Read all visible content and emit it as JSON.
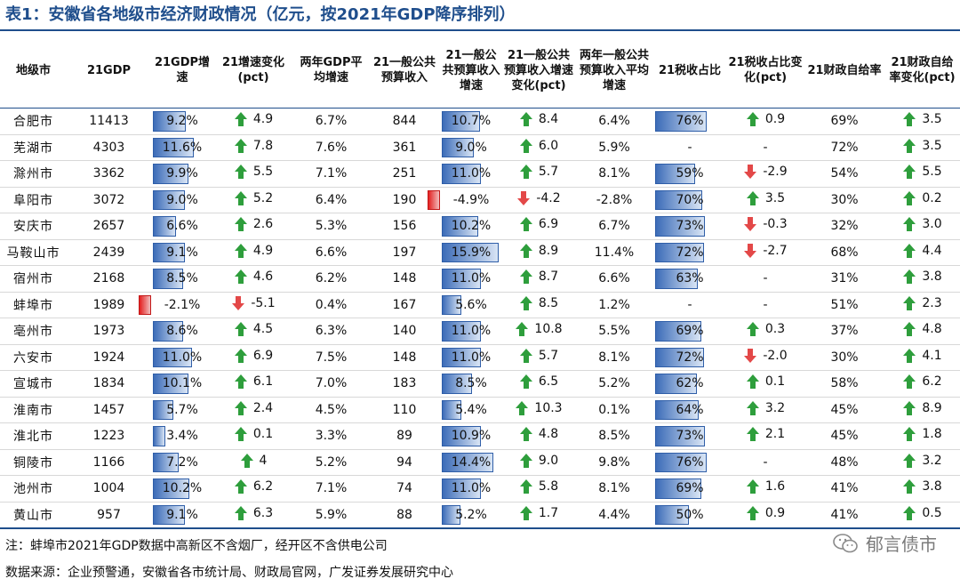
{
  "title": "表1：安徽省各地级市经济财政情况（亿元，按2021年GDP降序排列）",
  "headers": [
    "地级市",
    "21GDP",
    "21GDP增速",
    "21增速变化(pct)",
    "两年GDP平均增速",
    "21一般公共预算收入",
    "21一般公共预算收入增速",
    "21一般公共预算收入增速变化(pct)",
    "两年一般公共预算收入平均增速",
    "21税收占比",
    "21税收占比变化(pct)",
    "21财政自给率",
    "21财政自给率变化(pct)"
  ],
  "colors": {
    "up": "#2e9e3c",
    "down": "#e34848",
    "bar": "#3c6cb8",
    "neg_bar": "#e32020",
    "accent": "#1f4e8c"
  },
  "rows": [
    {
      "city": "合肥市",
      "gdp": "11413",
      "gdp_g": "9.2%",
      "gdp_g_v": 9.2,
      "gdp_chg": "4.9",
      "gdp_chg_dir": "up",
      "gdp_avg": "6.7%",
      "rev": "844",
      "rev_g": "10.7%",
      "rev_g_v": 10.7,
      "rev_chg": "8.4",
      "rev_chg_dir": "up",
      "rev_avg": "6.4%",
      "tax": "76%",
      "tax_v": 76,
      "tax_chg": "0.9",
      "tax_chg_dir": "up",
      "self": "69%",
      "self_chg": "3.5",
      "self_chg_dir": "up"
    },
    {
      "city": "芜湖市",
      "gdp": "4303",
      "gdp_g": "11.6%",
      "gdp_g_v": 11.6,
      "gdp_chg": "7.8",
      "gdp_chg_dir": "up",
      "gdp_avg": "7.6%",
      "rev": "361",
      "rev_g": "9.0%",
      "rev_g_v": 9.0,
      "rev_chg": "6.0",
      "rev_chg_dir": "up",
      "rev_avg": "5.9%",
      "tax": "-",
      "tax_v": null,
      "tax_chg": "-",
      "tax_chg_dir": "none",
      "self": "72%",
      "self_chg": "3.5",
      "self_chg_dir": "up"
    },
    {
      "city": "滁州市",
      "gdp": "3362",
      "gdp_g": "9.9%",
      "gdp_g_v": 9.9,
      "gdp_chg": "5.5",
      "gdp_chg_dir": "up",
      "gdp_avg": "7.1%",
      "rev": "251",
      "rev_g": "11.0%",
      "rev_g_v": 11.0,
      "rev_chg": "5.7",
      "rev_chg_dir": "up",
      "rev_avg": "8.1%",
      "tax": "59%",
      "tax_v": 59,
      "tax_chg": "-2.9",
      "tax_chg_dir": "down",
      "self": "54%",
      "self_chg": "5.5",
      "self_chg_dir": "up"
    },
    {
      "city": "阜阳市",
      "gdp": "3072",
      "gdp_g": "9.0%",
      "gdp_g_v": 9.0,
      "gdp_chg": "5.2",
      "gdp_chg_dir": "up",
      "gdp_avg": "6.4%",
      "rev": "190",
      "rev_g": "-4.9%",
      "rev_g_v": -4.9,
      "rev_chg": "-4.2",
      "rev_chg_dir": "down",
      "rev_avg": "-2.8%",
      "tax": "70%",
      "tax_v": 70,
      "tax_chg": "3.5",
      "tax_chg_dir": "up",
      "self": "30%",
      "self_chg": "0.2",
      "self_chg_dir": "up"
    },
    {
      "city": "安庆市",
      "gdp": "2657",
      "gdp_g": "6.6%",
      "gdp_g_v": 6.6,
      "gdp_chg": "2.6",
      "gdp_chg_dir": "up",
      "gdp_avg": "5.3%",
      "rev": "156",
      "rev_g": "10.2%",
      "rev_g_v": 10.2,
      "rev_chg": "6.9",
      "rev_chg_dir": "up",
      "rev_avg": "6.7%",
      "tax": "73%",
      "tax_v": 73,
      "tax_chg": "-0.3",
      "tax_chg_dir": "down",
      "self": "32%",
      "self_chg": "3.0",
      "self_chg_dir": "up"
    },
    {
      "city": "马鞍山市",
      "gdp": "2439",
      "gdp_g": "9.1%",
      "gdp_g_v": 9.1,
      "gdp_chg": "4.9",
      "gdp_chg_dir": "up",
      "gdp_avg": "6.6%",
      "rev": "197",
      "rev_g": "15.9%",
      "rev_g_v": 15.9,
      "rev_chg": "8.9",
      "rev_chg_dir": "up",
      "rev_avg": "11.4%",
      "tax": "72%",
      "tax_v": 72,
      "tax_chg": "-2.7",
      "tax_chg_dir": "down",
      "self": "68%",
      "self_chg": "4.4",
      "self_chg_dir": "up"
    },
    {
      "city": "宿州市",
      "gdp": "2168",
      "gdp_g": "8.5%",
      "gdp_g_v": 8.5,
      "gdp_chg": "4.6",
      "gdp_chg_dir": "up",
      "gdp_avg": "6.2%",
      "rev": "148",
      "rev_g": "11.0%",
      "rev_g_v": 11.0,
      "rev_chg": "8.7",
      "rev_chg_dir": "up",
      "rev_avg": "6.6%",
      "tax": "63%",
      "tax_v": 63,
      "tax_chg": "-",
      "tax_chg_dir": "none",
      "self": "31%",
      "self_chg": "3.8",
      "self_chg_dir": "up"
    },
    {
      "city": "蚌埠市",
      "gdp": "1989",
      "gdp_g": "-2.1%",
      "gdp_g_v": -2.1,
      "gdp_chg": "-5.1",
      "gdp_chg_dir": "down",
      "gdp_avg": "0.4%",
      "rev": "167",
      "rev_g": "5.6%",
      "rev_g_v": 5.6,
      "rev_chg": "8.5",
      "rev_chg_dir": "up",
      "rev_avg": "1.2%",
      "tax": "-",
      "tax_v": null,
      "tax_chg": "-",
      "tax_chg_dir": "none",
      "self": "51%",
      "self_chg": "2.3",
      "self_chg_dir": "up"
    },
    {
      "city": "亳州市",
      "gdp": "1973",
      "gdp_g": "8.6%",
      "gdp_g_v": 8.6,
      "gdp_chg": "4.5",
      "gdp_chg_dir": "up",
      "gdp_avg": "6.3%",
      "rev": "140",
      "rev_g": "11.0%",
      "rev_g_v": 11.0,
      "rev_chg": "10.8",
      "rev_chg_dir": "up",
      "rev_avg": "5.5%",
      "tax": "69%",
      "tax_v": 69,
      "tax_chg": "0.3",
      "tax_chg_dir": "up",
      "self": "37%",
      "self_chg": "4.8",
      "self_chg_dir": "up"
    },
    {
      "city": "六安市",
      "gdp": "1924",
      "gdp_g": "11.0%",
      "gdp_g_v": 11.0,
      "gdp_chg": "6.9",
      "gdp_chg_dir": "up",
      "gdp_avg": "7.5%",
      "rev": "148",
      "rev_g": "11.0%",
      "rev_g_v": 11.0,
      "rev_chg": "5.7",
      "rev_chg_dir": "up",
      "rev_avg": "8.1%",
      "tax": "72%",
      "tax_v": 72,
      "tax_chg": "-2.0",
      "tax_chg_dir": "down",
      "self": "30%",
      "self_chg": "4.1",
      "self_chg_dir": "up"
    },
    {
      "city": "宣城市",
      "gdp": "1834",
      "gdp_g": "10.1%",
      "gdp_g_v": 10.1,
      "gdp_chg": "6.1",
      "gdp_chg_dir": "up",
      "gdp_avg": "7.0%",
      "rev": "183",
      "rev_g": "8.5%",
      "rev_g_v": 8.5,
      "rev_chg": "6.5",
      "rev_chg_dir": "up",
      "rev_avg": "5.2%",
      "tax": "62%",
      "tax_v": 62,
      "tax_chg": "0.1",
      "tax_chg_dir": "up",
      "self": "58%",
      "self_chg": "6.2",
      "self_chg_dir": "up"
    },
    {
      "city": "淮南市",
      "gdp": "1457",
      "gdp_g": "5.7%",
      "gdp_g_v": 5.7,
      "gdp_chg": "2.4",
      "gdp_chg_dir": "up",
      "gdp_avg": "4.5%",
      "rev": "110",
      "rev_g": "5.4%",
      "rev_g_v": 5.4,
      "rev_chg": "10.3",
      "rev_chg_dir": "up",
      "rev_avg": "0.1%",
      "tax": "64%",
      "tax_v": 64,
      "tax_chg": "3.2",
      "tax_chg_dir": "up",
      "self": "45%",
      "self_chg": "8.9",
      "self_chg_dir": "up"
    },
    {
      "city": "淮北市",
      "gdp": "1223",
      "gdp_g": "3.4%",
      "gdp_g_v": 3.4,
      "gdp_chg": "0.1",
      "gdp_chg_dir": "up",
      "gdp_avg": "3.3%",
      "rev": "89",
      "rev_g": "10.9%",
      "rev_g_v": 10.9,
      "rev_chg": "4.8",
      "rev_chg_dir": "up",
      "rev_avg": "8.5%",
      "tax": "73%",
      "tax_v": 73,
      "tax_chg": "2.1",
      "tax_chg_dir": "up",
      "self": "45%",
      "self_chg": "1.8",
      "self_chg_dir": "up"
    },
    {
      "city": "铜陵市",
      "gdp": "1166",
      "gdp_g": "7.2%",
      "gdp_g_v": 7.2,
      "gdp_chg": "4",
      "gdp_chg_dir": "up",
      "gdp_avg": "5.2%",
      "rev": "94",
      "rev_g": "14.4%",
      "rev_g_v": 14.4,
      "rev_chg": "9.0",
      "rev_chg_dir": "up",
      "rev_avg": "9.8%",
      "tax": "76%",
      "tax_v": 76,
      "tax_chg": "-",
      "tax_chg_dir": "none",
      "self": "48%",
      "self_chg": "3.2",
      "self_chg_dir": "up"
    },
    {
      "city": "池州市",
      "gdp": "1004",
      "gdp_g": "10.2%",
      "gdp_g_v": 10.2,
      "gdp_chg": "6.2",
      "gdp_chg_dir": "up",
      "gdp_avg": "7.1%",
      "rev": "74",
      "rev_g": "11.0%",
      "rev_g_v": 11.0,
      "rev_chg": "5.8",
      "rev_chg_dir": "up",
      "rev_avg": "8.1%",
      "tax": "69%",
      "tax_v": 69,
      "tax_chg": "1.6",
      "tax_chg_dir": "up",
      "self": "41%",
      "self_chg": "3.8",
      "self_chg_dir": "up"
    },
    {
      "city": "黄山市",
      "gdp": "957",
      "gdp_g": "9.1%",
      "gdp_g_v": 9.1,
      "gdp_chg": "6.3",
      "gdp_chg_dir": "up",
      "gdp_avg": "5.9%",
      "rev": "88",
      "rev_g": "5.2%",
      "rev_g_v": 5.2,
      "rev_chg": "1.7",
      "rev_chg_dir": "up",
      "rev_avg": "4.4%",
      "tax": "50%",
      "tax_v": 50,
      "tax_chg": "0.9",
      "tax_chg_dir": "up",
      "self": "41%",
      "self_chg": "0.5",
      "self_chg_dir": "up"
    }
  ],
  "note": "注：蚌埠市2021年GDP数据中高新区不含烟厂，经开区不含供电公司",
  "source": "数据来源：企业预警通，安徽省各市统计局、财政局官网，广发证券发展研究中心",
  "watermark": "郁言债市",
  "watermark_icon": "wechat-icon"
}
